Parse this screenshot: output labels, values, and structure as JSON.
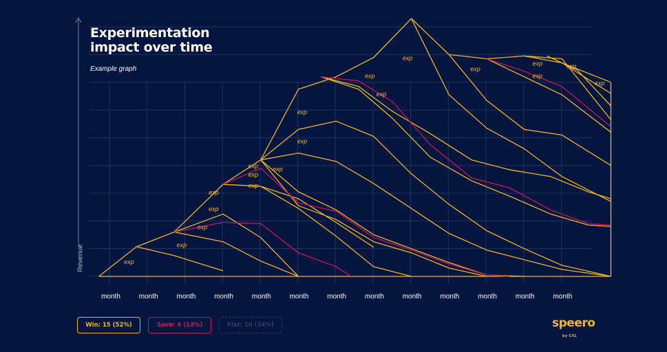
{
  "header": {
    "title_line1": "Experimentation",
    "title_line2": "impact over time",
    "subtitle": "Example graph"
  },
  "legend": {
    "win": "Win: 15 (52%)",
    "save": "Save: 4 (14%)",
    "flat": "Flat: 10 (34%)"
  },
  "logo": {
    "name": "speero",
    "by": "by CXL"
  },
  "colors": {
    "background": "#041640",
    "win": "#f3b51e",
    "save": "#d0105f",
    "grid": "#1e3360"
  },
  "chart_data": {
    "type": "line",
    "ylabel": "Revenue",
    "x": [
      "month",
      "month",
      "month",
      "month",
      "month",
      "month",
      "month",
      "month",
      "month",
      "month",
      "month",
      "month",
      "month"
    ],
    "xlim": [
      -0.3,
      13.5
    ],
    "ylim": [
      0,
      9.3
    ],
    "grid": true,
    "exp_label": "exp",
    "baseline": {
      "x": [
        -0.3,
        13.3
      ],
      "y": [
        0,
        0
      ],
      "kind": "win"
    },
    "series": [
      {
        "kind": "win",
        "x": [
          -0.3,
          0.7,
          1.7,
          3.0,
          4.0,
          5.0,
          6.0,
          7.0,
          8.0,
          9.0,
          10.0,
          11.0,
          12.0,
          13.3
        ],
        "y": [
          0,
          1.07,
          1.6,
          3.32,
          4.2,
          6.75,
          7.2,
          7.9,
          9.3,
          8.0,
          7.85,
          7.95,
          7.7,
          7.0
        ]
      },
      {
        "kind": "win",
        "x": [
          0.7,
          1.7,
          3.0
        ],
        "y": [
          1.07,
          0.75,
          0.2
        ]
      },
      {
        "kind": "win",
        "x": [
          1.7,
          3.0,
          4.0,
          5.0
        ],
        "y": [
          1.6,
          1.25,
          0.55,
          0
        ]
      },
      {
        "kind": "win",
        "x": [
          1.7,
          3.0,
          4.0,
          5.0
        ],
        "y": [
          1.6,
          2.25,
          1.4,
          0
        ]
      },
      {
        "kind": "save",
        "x": [
          1.7,
          3.0,
          4.0,
          5.0,
          6.0,
          6.4
        ],
        "y": [
          1.6,
          1.95,
          1.9,
          0.85,
          0.35,
          0
        ]
      },
      {
        "kind": "win",
        "x": [
          3.0,
          4.0,
          5.0,
          6.0,
          7.0
        ],
        "y": [
          3.32,
          3.25,
          2.8,
          1.95,
          1.05
        ]
      },
      {
        "kind": "win",
        "x": [
          3.0,
          4.0,
          5.0,
          6.0,
          7.0,
          8.0
        ],
        "y": [
          3.32,
          3.25,
          2.45,
          1.45,
          0.35,
          0
        ]
      },
      {
        "kind": "save",
        "x": [
          3.0,
          4.0,
          5.0,
          6.0,
          7.0,
          8.0,
          9.0,
          10.0,
          10.6
        ],
        "y": [
          3.32,
          3.9,
          2.65,
          2.35,
          1.4,
          0.95,
          0.45,
          0.05,
          0
        ]
      },
      {
        "kind": "win",
        "x": [
          4.0,
          5.0,
          6.0,
          7.0,
          8.0,
          9.0,
          10.0,
          11.0
        ],
        "y": [
          4.2,
          3.05,
          2.4,
          1.5,
          1.0,
          0.5,
          0.05,
          0
        ]
      },
      {
        "kind": "win",
        "x": [
          4.0,
          5.0,
          6.0,
          7.0,
          8.0,
          9.0,
          10.0
        ],
        "y": [
          4.2,
          2.55,
          2.05,
          1.25,
          0.85,
          0.3,
          0
        ]
      },
      {
        "kind": "win",
        "x": [
          4.0,
          5.0,
          6.0,
          7.0,
          8.0,
          9.0,
          10.0,
          11.0,
          12.0,
          13.3
        ],
        "y": [
          4.2,
          4.45,
          4.15,
          3.35,
          2.45,
          1.55,
          0.95,
          0.6,
          0.25,
          0
        ]
      },
      {
        "kind": "win",
        "x": [
          4.0,
          5.0,
          6.0,
          7.0,
          8.0,
          9.0,
          10.0,
          11.0,
          12.0,
          13.3
        ],
        "y": [
          4.2,
          5.3,
          5.6,
          5.05,
          3.7,
          2.6,
          1.65,
          1.0,
          0.4,
          0
        ]
      },
      {
        "kind": "save",
        "x": [
          5.6,
          6.6,
          7.5,
          8.5,
          9.6,
          10.6,
          11.7,
          12.7,
          13.3
        ],
        "y": [
          7.2,
          7.05,
          6.3,
          4.75,
          3.55,
          3.2,
          2.4,
          1.9,
          1.85
        ]
      },
      {
        "kind": "win",
        "x": [
          5.6,
          6.6,
          7.5,
          8.5,
          9.6,
          10.6,
          11.7,
          12.7,
          13.3
        ],
        "y": [
          7.2,
          6.75,
          5.7,
          4.3,
          3.45,
          2.9,
          2.25,
          1.85,
          1.8
        ]
      },
      {
        "kind": "win",
        "x": [
          5.6,
          6.6,
          7.5,
          8.5,
          9.6,
          10.6,
          11.7,
          12.7,
          13.3
        ],
        "y": [
          7.2,
          6.85,
          5.95,
          5.15,
          4.2,
          3.85,
          3.6,
          3.05,
          2.8
        ]
      },
      {
        "kind": "win",
        "x": [
          8.0,
          9.0,
          10.0,
          11.0,
          12.0,
          13.3
        ],
        "y": [
          9.3,
          6.55,
          5.35,
          4.6,
          3.6,
          2.7
        ]
      },
      {
        "kind": "win",
        "x": [
          9.0,
          10.0,
          11.0,
          12.0,
          13.3
        ],
        "y": [
          8.0,
          6.35,
          5.3,
          5.1,
          4.0
        ]
      },
      {
        "kind": "save",
        "x": [
          10.0,
          11.0,
          12.0,
          13.3
        ],
        "y": [
          7.85,
          7.4,
          6.85,
          5.4
        ]
      },
      {
        "kind": "win",
        "x": [
          10.0,
          11.0,
          12.0,
          13.3
        ],
        "y": [
          7.85,
          7.2,
          6.55,
          5.2
        ]
      },
      {
        "kind": "win",
        "x": [
          11.0,
          12.0,
          13.3
        ],
        "y": [
          7.95,
          7.85,
          5.65
        ]
      },
      {
        "kind": "win",
        "x": [
          11.6,
          12.4,
          13.3
        ],
        "y": [
          7.95,
          7.45,
          6.15
        ]
      },
      {
        "kind": "win",
        "x": [
          12.0,
          13.3
        ],
        "y": [
          7.7,
          6.6
        ]
      },
      {
        "kind": "win",
        "x": [
          13.3,
          13.3
        ],
        "y": [
          0,
          7.0
        ]
      }
    ],
    "annotations": [
      {
        "text": "exp",
        "x": 0.5,
        "y": 0.45
      },
      {
        "text": "exp",
        "x": 1.9,
        "y": 1.05
      },
      {
        "text": "exp",
        "x": 2.45,
        "y": 1.7
      },
      {
        "text": "exp",
        "x": 2.75,
        "y": 2.35
      },
      {
        "text": "exp",
        "x": 2.75,
        "y": 2.95
      },
      {
        "text": "exp",
        "x": 3.8,
        "y": 3.2
      },
      {
        "text": "exp",
        "x": 3.8,
        "y": 3.6
      },
      {
        "text": "exp",
        "x": 3.8,
        "y": 3.9
      },
      {
        "text": "exp",
        "x": 4.45,
        "y": 3.8
      },
      {
        "text": "exp",
        "x": 5.1,
        "y": 4.8
      },
      {
        "text": "exp",
        "x": 5.1,
        "y": 5.85
      },
      {
        "text": "exp",
        "x": 6.9,
        "y": 7.15
      },
      {
        "text": "exp",
        "x": 7.2,
        "y": 6.5
      },
      {
        "text": "exp",
        "x": 7.9,
        "y": 7.8
      },
      {
        "text": "exp",
        "x": 9.7,
        "y": 7.4
      },
      {
        "text": "exp",
        "x": 11.35,
        "y": 7.6
      },
      {
        "text": "exp",
        "x": 11.35,
        "y": 7.15
      },
      {
        "text": "exp",
        "x": 12.25,
        "y": 7.5
      },
      {
        "text": "exp",
        "x": 13.0,
        "y": 6.9
      }
    ]
  }
}
